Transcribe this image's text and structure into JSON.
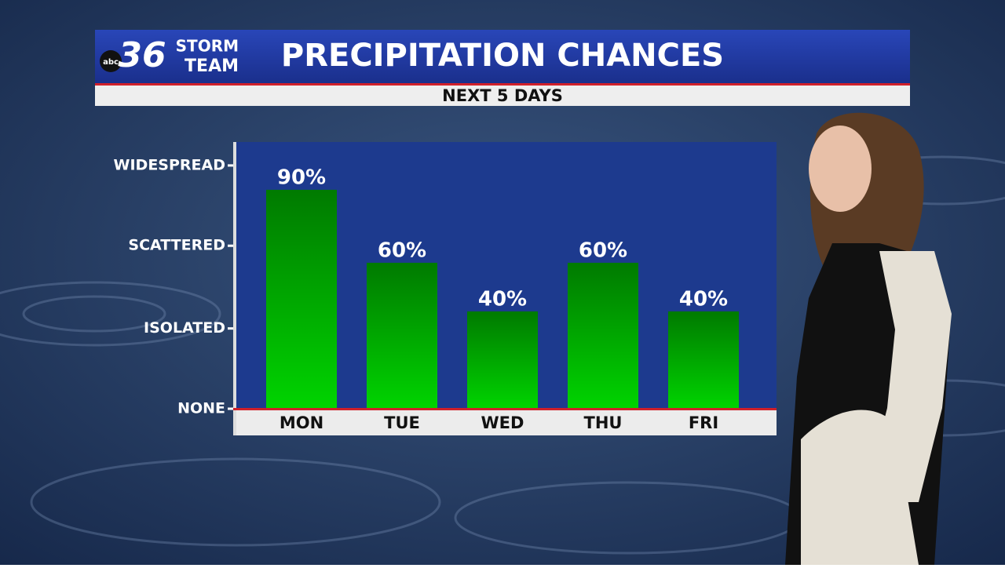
{
  "logo": {
    "network": "abc",
    "number": "36",
    "line1": "STORM",
    "line2": "TEAM"
  },
  "chart_data": {
    "type": "bar",
    "title": "PRECIPITATION CHANCES",
    "subtitle": "NEXT 5 DAYS",
    "categories": [
      "MON",
      "TUE",
      "WED",
      "THU",
      "FRI"
    ],
    "values": [
      90,
      60,
      40,
      60,
      40
    ],
    "value_labels": [
      "90%",
      "60%",
      "40%",
      "60%",
      "40%"
    ],
    "color": "#00d400",
    "ylim": [
      0,
      109
    ],
    "yticks": [
      {
        "value": 0,
        "label": "NONE"
      },
      {
        "value": 33,
        "label": "ISOLATED"
      },
      {
        "value": 67,
        "label": "SCATTERED"
      },
      {
        "value": 100,
        "label": "WIDESPREAD"
      }
    ]
  }
}
